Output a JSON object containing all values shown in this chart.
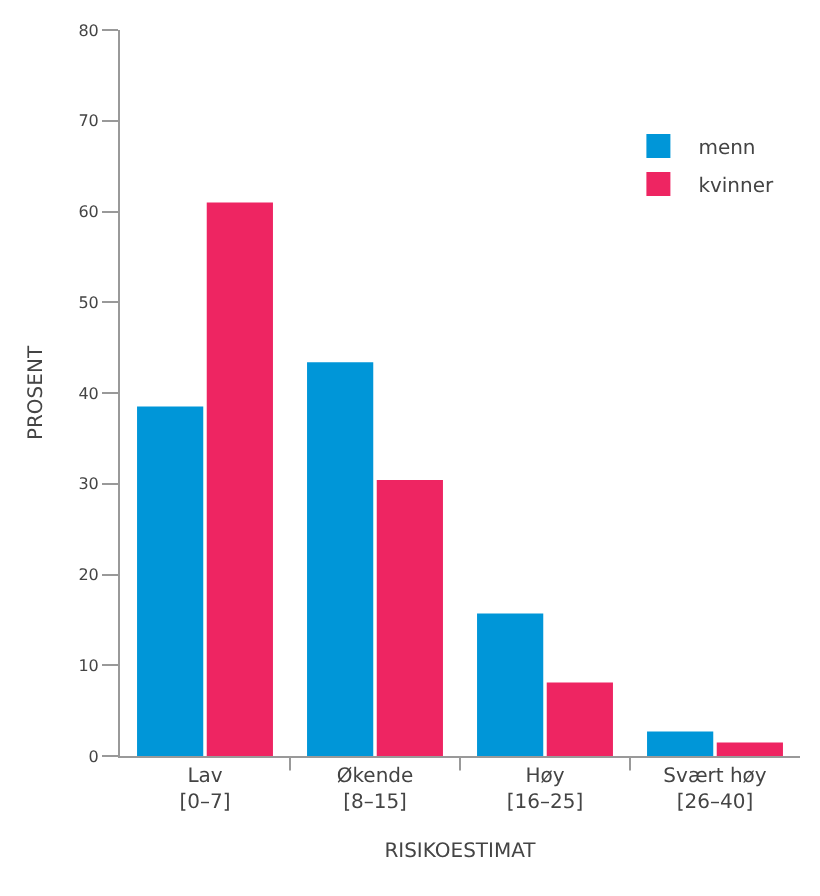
{
  "chart_data": {
    "type": "bar",
    "xlabel": "RISIKOESTIMAT",
    "ylabel": "PROSENT",
    "categories": [
      "Lav\n[0–7]",
      "Økende\n[8–15]",
      "Høy\n[16–25]",
      "Svært høy\n[26–40]"
    ],
    "series": [
      {
        "name": "menn",
        "color": "#0096d8",
        "values": [
          38.5,
          43.4,
          15.7,
          2.7
        ]
      },
      {
        "name": "kvinner",
        "color": "#ee2562",
        "values": [
          61.0,
          30.4,
          8.1,
          1.5
        ]
      }
    ],
    "ylim": [
      0,
      80
    ],
    "yticks": [
      0,
      10,
      20,
      30,
      40,
      50,
      60,
      70,
      80
    ],
    "legend": "top right"
  }
}
